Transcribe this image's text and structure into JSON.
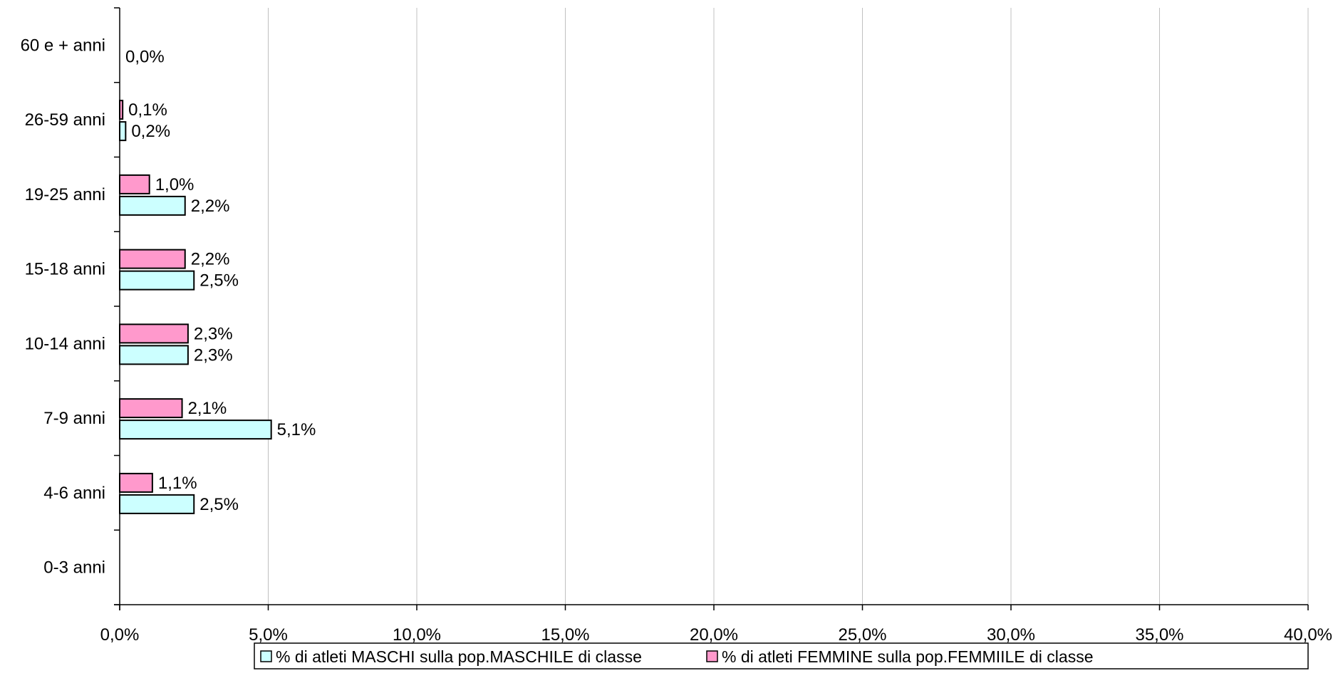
{
  "chart_data": {
    "type": "bar",
    "orientation": "horizontal",
    "categories": [
      "0-3 anni",
      "4-6 anni",
      "7-9 anni",
      "10-14 anni",
      "15-18 anni",
      "19-25 anni",
      "26-59 anni",
      "60 e + anni"
    ],
    "series": [
      {
        "name": "% di atleti MASCHI sulla pop.MASCHILE di classe",
        "color": "#ccffff",
        "values": [
          null,
          2.5,
          5.1,
          2.3,
          2.5,
          2.2,
          0.2,
          0.0
        ],
        "labels": [
          null,
          "2,5%",
          "5,1%",
          "2,3%",
          "2,5%",
          "2,2%",
          "0,2%",
          "0,0%"
        ]
      },
      {
        "name": "% di atleti FEMMINE sulla pop.FEMMIILE di classe",
        "color": "#ff99cc",
        "values": [
          null,
          1.1,
          2.1,
          2.3,
          2.2,
          1.0,
          0.1,
          null
        ],
        "labels": [
          null,
          "1,1%",
          "2,1%",
          "2,3%",
          "2,2%",
          "1,0%",
          "0,1%",
          null
        ]
      }
    ],
    "xlim": [
      0,
      40
    ],
    "xticks": [
      0,
      5,
      10,
      15,
      20,
      25,
      30,
      35,
      40
    ],
    "xtick_labels": [
      "0,0%",
      "5,0%",
      "10,0%",
      "15,0%",
      "20,0%",
      "25,0%",
      "30,0%",
      "35,0%",
      "40,0%"
    ],
    "grid": "vertical",
    "legend_position": "bottom",
    "gridline_color": "#c0c0c0",
    "axis_color": "#000000"
  }
}
